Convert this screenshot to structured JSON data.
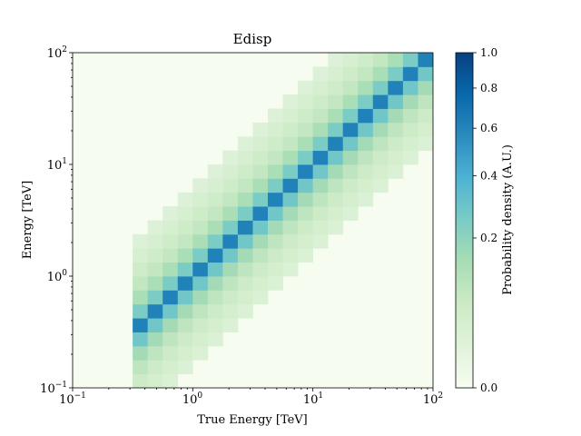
{
  "chart_data": {
    "type": "heatmap",
    "title": "Edisp",
    "xlabel": "True Energy [TeV]",
    "ylabel": "Energy [TeV]",
    "xscale": "log",
    "yscale": "log",
    "xlim": [
      0.1,
      100
    ],
    "ylim": [
      0.1,
      100
    ],
    "x_ticks": [
      {
        "base": "10",
        "exp": "−1",
        "value": 0.1
      },
      {
        "base": "10",
        "exp": "0",
        "value": 1
      },
      {
        "base": "10",
        "exp": "1",
        "value": 10
      },
      {
        "base": "10",
        "exp": "2",
        "value": 100
      }
    ],
    "y_ticks": [
      {
        "base": "10",
        "exp": "−1",
        "value": 0.1
      },
      {
        "base": "10",
        "exp": "0",
        "value": 1
      },
      {
        "base": "10",
        "exp": "1",
        "value": 10
      },
      {
        "base": "10",
        "exp": "2",
        "value": 100
      }
    ],
    "bins_per_decade": 8,
    "true_energy_start": 0.316,
    "n_true_bins": 20,
    "dispersion_profile": [
      0.62,
      0.28,
      0.15,
      0.09,
      0.06,
      0.04,
      0.025
    ],
    "colorbar": {
      "label": "Probability density (A.U.)",
      "colormap": "GnBu",
      "scale": "power",
      "range": [
        0.0,
        1.0
      ],
      "ticks": [
        "0.0",
        "0.2",
        "0.4",
        "0.6",
        "0.8",
        "1.0"
      ]
    },
    "grid": false,
    "legend": "none"
  }
}
